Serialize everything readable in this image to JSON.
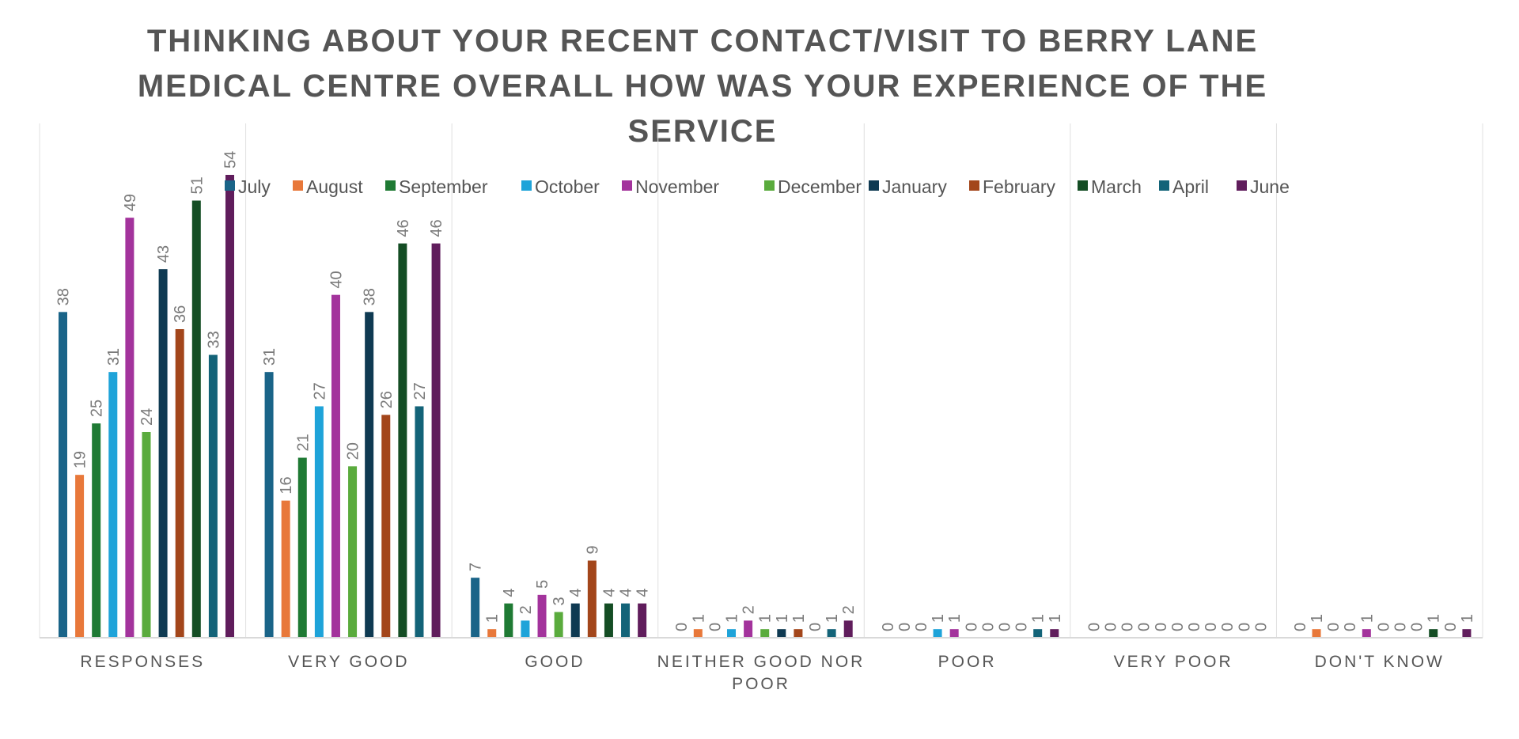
{
  "chart_data": {
    "type": "bar",
    "title": "THINKING ABOUT YOUR RECENT CONTACT/VISIT TO BERRY LANE MEDICAL CENTRE OVERALL HOW WAS YOUR EXPERIENCE OF THE SERVICE",
    "title_lines": [
      "THINKING ABOUT YOUR RECENT CONTACT/VISIT TO BERRY LANE",
      "MEDICAL CENTRE OVERALL HOW WAS YOUR EXPERIENCE OF THE",
      "SERVICE"
    ],
    "categories": [
      "RESPONSES",
      "VERY GOOD",
      "GOOD",
      "NEITHER GOOD NOR POOR",
      "POOR",
      "VERY POOR",
      "DON'T KNOW"
    ],
    "category_lines": [
      [
        "RESPONSES"
      ],
      [
        "VERY GOOD"
      ],
      [
        "GOOD"
      ],
      [
        "NEITHER GOOD NOR",
        "POOR"
      ],
      [
        "POOR"
      ],
      [
        "VERY POOR"
      ],
      [
        "DON'T KNOW"
      ]
    ],
    "series": [
      {
        "name": "July",
        "color": "#1a6488",
        "values": [
          38,
          31,
          7,
          0,
          0,
          0,
          0
        ]
      },
      {
        "name": "August",
        "color": "#e8783a",
        "values": [
          19,
          16,
          1,
          1,
          0,
          0,
          1
        ]
      },
      {
        "name": "September",
        "color": "#1f7a34",
        "values": [
          25,
          21,
          4,
          0,
          0,
          0,
          0
        ]
      },
      {
        "name": "October",
        "color": "#1ea3d9",
        "values": [
          31,
          27,
          2,
          1,
          1,
          0,
          0
        ]
      },
      {
        "name": "November",
        "color": "#a3339c",
        "values": [
          49,
          40,
          5,
          2,
          1,
          0,
          1
        ]
      },
      {
        "name": "December",
        "color": "#5aab3d",
        "values": [
          24,
          20,
          3,
          1,
          0,
          0,
          0
        ]
      },
      {
        "name": "January",
        "color": "#0f3a52",
        "values": [
          43,
          38,
          4,
          1,
          0,
          0,
          0
        ]
      },
      {
        "name": "February",
        "color": "#a3461b",
        "values": [
          36,
          26,
          9,
          1,
          0,
          0,
          0
        ]
      },
      {
        "name": "March",
        "color": "#144d24",
        "values": [
          51,
          46,
          4,
          0,
          0,
          0,
          1
        ]
      },
      {
        "name": "April",
        "color": "#136378",
        "values": [
          33,
          27,
          4,
          1,
          1,
          0,
          0
        ]
      },
      {
        "name": "June",
        "color": "#601d5c",
        "values": [
          54,
          46,
          4,
          2,
          1,
          0,
          1
        ]
      }
    ],
    "ylim": [
      0,
      60
    ],
    "xlabel": "",
    "ylabel": "",
    "legend_position": "top",
    "grid": false,
    "data_labels": true,
    "data_label_rotation": -90
  }
}
